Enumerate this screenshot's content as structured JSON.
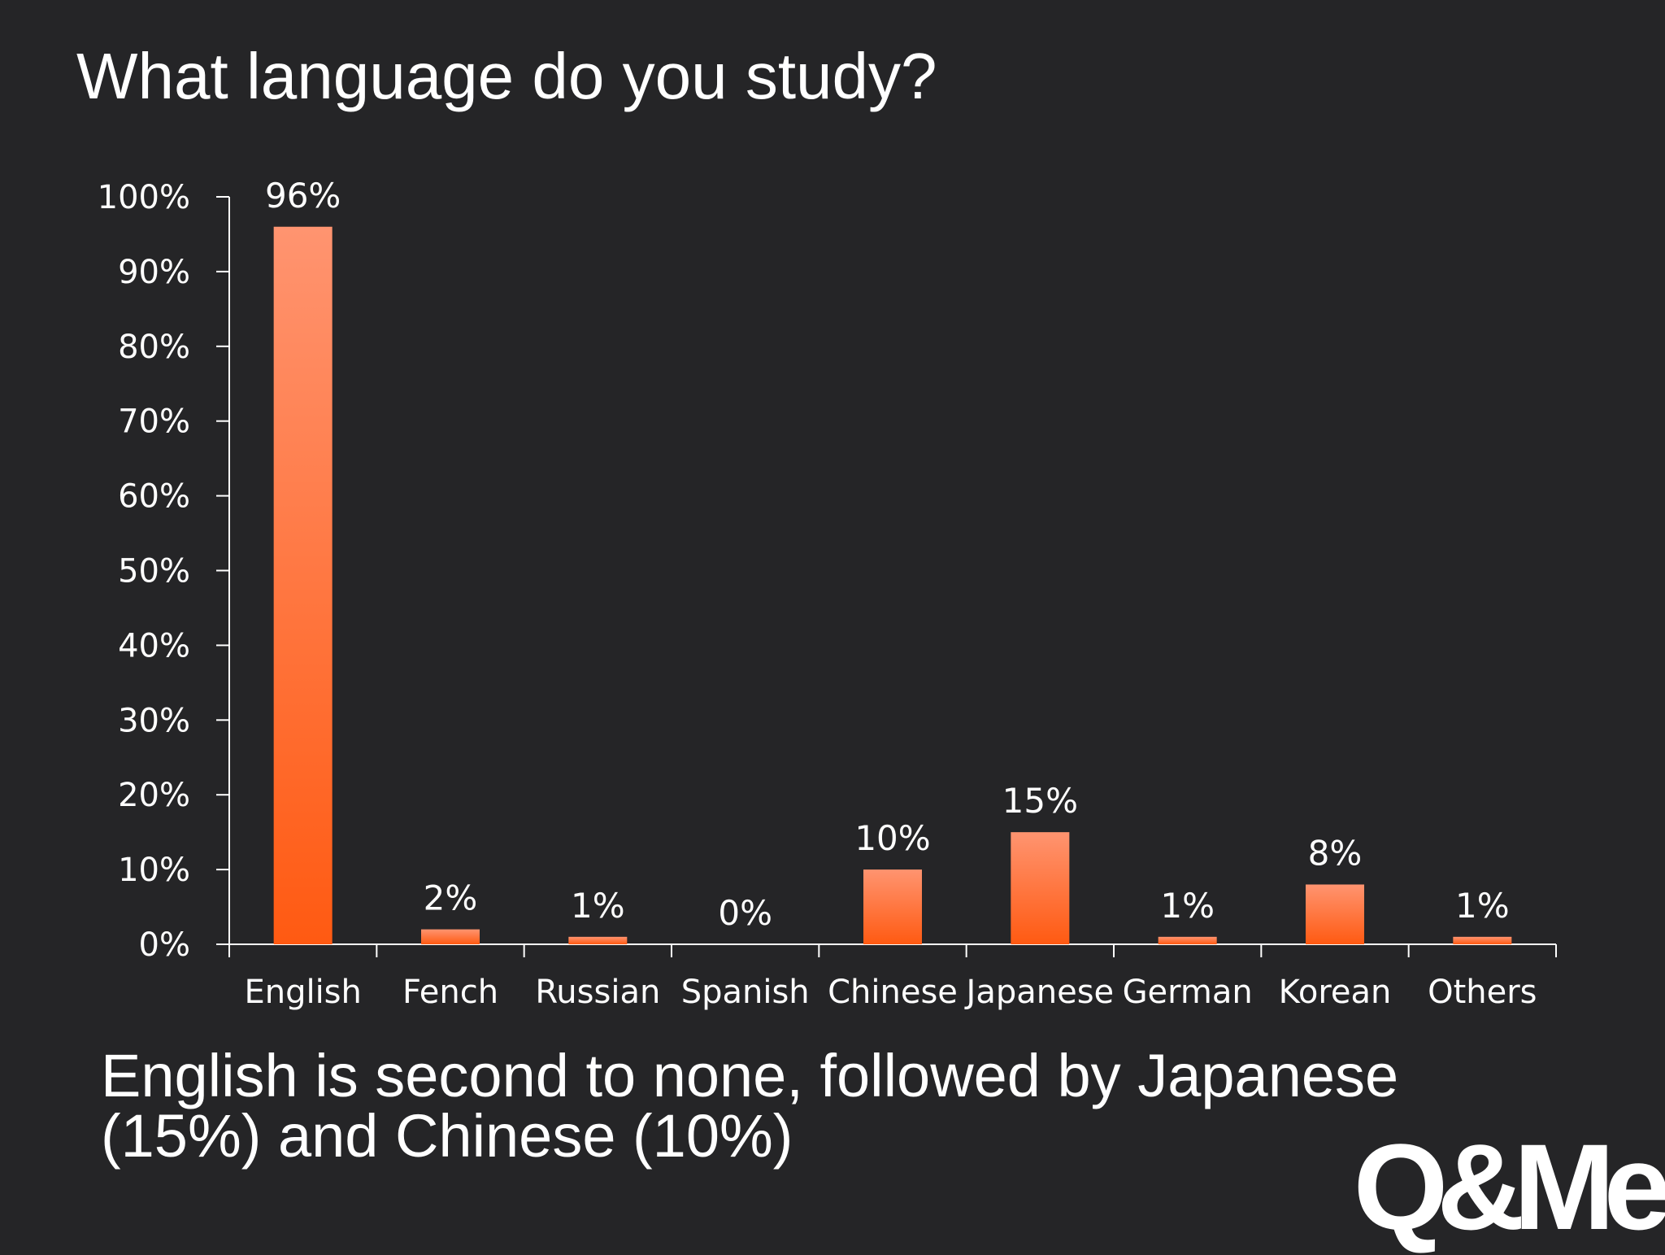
{
  "slide": {
    "title": "What language do you study?",
    "conclusion": "English is second to none, followed by Japanese (15%) and Chinese (10%)",
    "logo_text": "Q&Me"
  },
  "colors": {
    "background": "#252527",
    "bar_top": "#ff9470",
    "bar_bottom": "#ff5a12",
    "axis": "#ffffff",
    "text": "#ffffff"
  },
  "chart_data": {
    "type": "bar",
    "title": "",
    "xlabel": "",
    "ylabel": "",
    "categories": [
      "English",
      "Fench",
      "Russian",
      "Spanish",
      "Chinese",
      "Japanese",
      "German",
      "Korean",
      "Others"
    ],
    "values": [
      96,
      2,
      1,
      0,
      10,
      15,
      1,
      8,
      1
    ],
    "data_labels": [
      "96%",
      "2%",
      "1%",
      "0%",
      "10%",
      "15%",
      "1%",
      "8%",
      "1%"
    ],
    "ylim": [
      0,
      100
    ],
    "yticks": [
      0,
      10,
      20,
      30,
      40,
      50,
      60,
      70,
      80,
      90,
      100
    ],
    "ytick_labels": [
      "0%",
      "10%",
      "20%",
      "30%",
      "40%",
      "50%",
      "60%",
      "70%",
      "80%",
      "90%",
      "100%"
    ],
    "grid": false,
    "legend": "none"
  }
}
